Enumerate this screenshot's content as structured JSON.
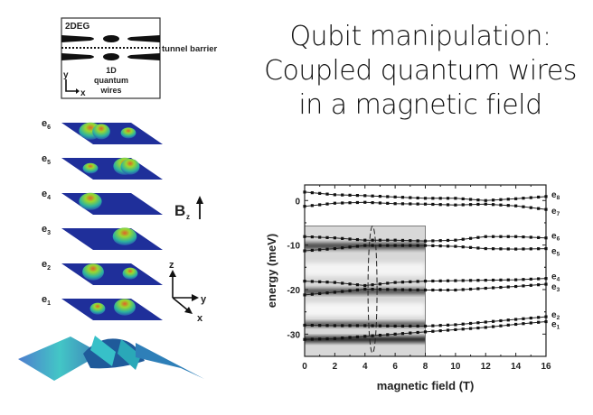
{
  "slide": {
    "title_lines": [
      "Qubit manipulation:",
      "Coupled quantum wires",
      "in a magnetic field"
    ]
  },
  "schematic": {
    "region_label": "2DEG",
    "barrier_label": "tunnel barrier",
    "wires_label_lines": [
      "1D",
      "quantum",
      "wires"
    ],
    "axis_y": "y",
    "axis_x": "x"
  },
  "wavefunctions": {
    "state_labels": [
      {
        "base": "e",
        "sub": "6"
      },
      {
        "base": "e",
        "sub": "5"
      },
      {
        "base": "e",
        "sub": "4"
      },
      {
        "base": "e",
        "sub": "3"
      },
      {
        "base": "e",
        "sub": "2"
      },
      {
        "base": "e",
        "sub": "1"
      }
    ],
    "field_label": {
      "base": "B",
      "sub": "z"
    },
    "axes": {
      "z": "z",
      "y": "y",
      "x": "x"
    },
    "colors": {
      "plate": "#1f2f9a",
      "peak_low": "#2bb3a0",
      "peak_mid": "#7cd33a",
      "peak_high": "#e0602a"
    }
  },
  "chart_data": {
    "type": "line",
    "xlabel": "magnetic field (T)",
    "ylabel": "energy (meV)",
    "xlim": [
      0,
      16
    ],
    "ylim": [
      -35,
      3.5
    ],
    "xticks": [
      0,
      2,
      4,
      6,
      8,
      10,
      12,
      14,
      16
    ],
    "yticks": [
      0,
      -10,
      -20,
      -30
    ],
    "grid": false,
    "x": [
      0,
      2,
      4,
      6,
      8,
      10,
      12,
      14,
      16
    ],
    "series": [
      {
        "name": "e8",
        "label_base": "e",
        "label_sub": "8",
        "values": [
          1.9,
          1.3,
          1.1,
          0.8,
          0.5,
          0.5,
          0.0,
          0.4,
          0.9
        ]
      },
      {
        "name": "e7",
        "label_base": "e",
        "label_sub": "7",
        "values": [
          -1.3,
          -0.6,
          -0.4,
          -0.7,
          -0.8,
          -1.0,
          -0.8,
          -1.2,
          -2.0
        ]
      },
      {
        "name": "e6",
        "label_base": "e",
        "label_sub": "6",
        "values": [
          -8.1,
          -8.4,
          -8.9,
          -8.9,
          -9.1,
          -8.9,
          -8.1,
          -8.1,
          -8.4
        ]
      },
      {
        "name": "e5",
        "label_base": "e",
        "label_sub": "5",
        "values": [
          -11.3,
          -10.8,
          -10.1,
          -10.1,
          -10.1,
          -10.3,
          -10.8,
          -10.9,
          -10.8
        ]
      },
      {
        "name": "e4",
        "label_base": "e",
        "label_sub": "4",
        "values": [
          -18.1,
          -18.4,
          -19.1,
          -18.4,
          -18.1,
          -18.0,
          -17.9,
          -17.8,
          -17.5
        ]
      },
      {
        "name": "e3",
        "label_base": "e",
        "label_sub": "3",
        "values": [
          -21.2,
          -20.6,
          -19.9,
          -20.0,
          -20.1,
          -20.1,
          -19.7,
          -19.3,
          -18.8
        ]
      },
      {
        "name": "e2",
        "label_base": "e",
        "label_sub": "2",
        "values": [
          -28.0,
          -28.1,
          -28.1,
          -28.2,
          -28.2,
          -27.9,
          -27.3,
          -26.7,
          -26.1
        ]
      },
      {
        "name": "e1",
        "label_base": "e",
        "label_sub": "1",
        "values": [
          -31.2,
          -31.0,
          -30.5,
          -30.0,
          -29.5,
          -29.0,
          -28.5,
          -27.8,
          -27.2
        ]
      }
    ],
    "measurement_overlay": {
      "x_range": [
        0,
        8
      ],
      "y_range": [
        -35,
        -5.7
      ],
      "dark_bands_energy": [
        -10.2,
        -20.4,
        -27.8,
        -31.2
      ],
      "highlight_ellipse_center": [
        4.5,
        -20
      ]
    }
  }
}
